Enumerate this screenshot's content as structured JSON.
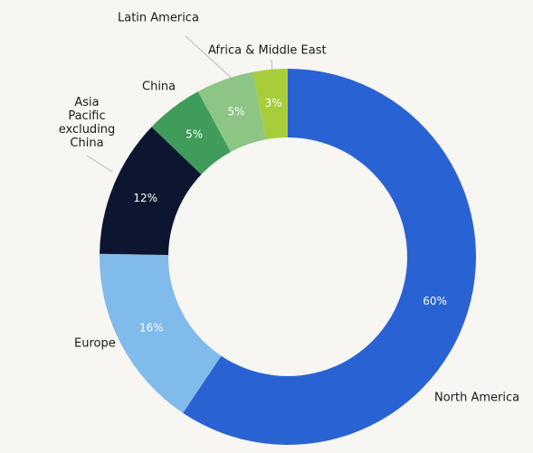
{
  "chart_data": {
    "type": "donut",
    "categories": [
      "North America",
      "Europe",
      "Asia Pacific excluding China",
      "China",
      "Latin America",
      "Africa & Middle East"
    ],
    "values": [
      60,
      16,
      12,
      5,
      5,
      3
    ],
    "value_labels": [
      "60%",
      "16%",
      "12%",
      "5%",
      "5%",
      "3%"
    ],
    "colors": [
      "#2962d3",
      "#80bbec",
      "#0d1630",
      "#3f9c5b",
      "#8dc585",
      "#a8cd3b"
    ]
  }
}
